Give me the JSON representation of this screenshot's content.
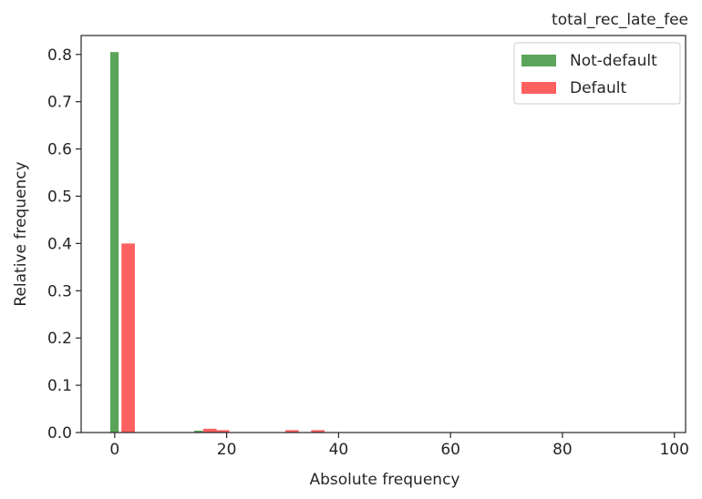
{
  "chart_data": {
    "type": "bar",
    "title": "total_rec_late_fee",
    "xlabel": "Absolute frequency",
    "ylabel": "Relative frequency",
    "xlim": [
      -6,
      102
    ],
    "ylim": [
      0,
      0.84
    ],
    "xticks": [
      0,
      20,
      40,
      60,
      80,
      100
    ],
    "yticks": [
      0.0,
      0.1,
      0.2,
      0.3,
      0.4,
      0.5,
      0.6,
      0.7,
      0.8
    ],
    "grid": false,
    "legend_position": "upper right",
    "series": [
      {
        "name": "Not-default",
        "color": "#5aa55a",
        "bars": [
          {
            "x": -0.8,
            "width": 1.5,
            "value": 0.805
          },
          {
            "x": 14.2,
            "width": 1.5,
            "value": 0.004
          },
          {
            "x": 15.7,
            "width": 1.5,
            "value": 0.003
          }
        ]
      },
      {
        "name": "Default",
        "color": "#ff6060",
        "bars": [
          {
            "x": 1.2,
            "width": 2.4,
            "value": 0.4
          },
          {
            "x": 15.8,
            "width": 2.4,
            "value": 0.008
          },
          {
            "x": 18.1,
            "width": 2.4,
            "value": 0.005
          },
          {
            "x": 30.5,
            "width": 2.4,
            "value": 0.005
          },
          {
            "x": 35.1,
            "width": 2.4,
            "value": 0.005
          }
        ]
      }
    ]
  }
}
